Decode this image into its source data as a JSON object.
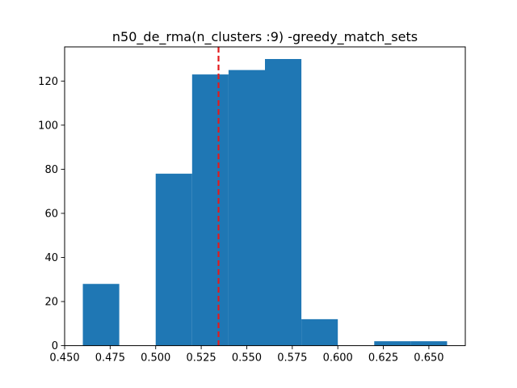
{
  "chart_data": {
    "type": "bar",
    "title": "n50_de_rma(n_clusters :9) -greedy_match_sets",
    "xlabel": "",
    "ylabel": "",
    "xlim": [
      0.45,
      0.67
    ],
    "ylim": [
      0,
      135.5
    ],
    "grid": false,
    "legend": "none",
    "bins": [
      {
        "left": 0.46,
        "right": 0.48,
        "count": 28
      },
      {
        "left": 0.48,
        "right": 0.5,
        "count": 0
      },
      {
        "left": 0.5,
        "right": 0.52,
        "count": 78
      },
      {
        "left": 0.52,
        "right": 0.54,
        "count": 123
      },
      {
        "left": 0.54,
        "right": 0.56,
        "count": 125
      },
      {
        "left": 0.56,
        "right": 0.58,
        "count": 130
      },
      {
        "left": 0.58,
        "right": 0.6,
        "count": 12
      },
      {
        "left": 0.6,
        "right": 0.62,
        "count": 0
      },
      {
        "left": 0.62,
        "right": 0.64,
        "count": 2
      },
      {
        "left": 0.64,
        "right": 0.66,
        "count": 2
      }
    ],
    "reference_line": {
      "x": 0.5345,
      "style": "dashed",
      "color": "#e31a1c"
    },
    "xticks": [
      "0.450",
      "0.475",
      "0.500",
      "0.525",
      "0.550",
      "0.575",
      "0.600",
      "0.625",
      "0.650"
    ],
    "xtick_values": [
      0.45,
      0.475,
      0.5,
      0.525,
      0.55,
      0.575,
      0.6,
      0.625,
      0.65
    ],
    "yticks": [
      "0",
      "20",
      "40",
      "60",
      "80",
      "100",
      "120"
    ],
    "ytick_values": [
      0,
      20,
      40,
      60,
      80,
      100,
      120
    ],
    "bar_color": "#1f77b4"
  }
}
